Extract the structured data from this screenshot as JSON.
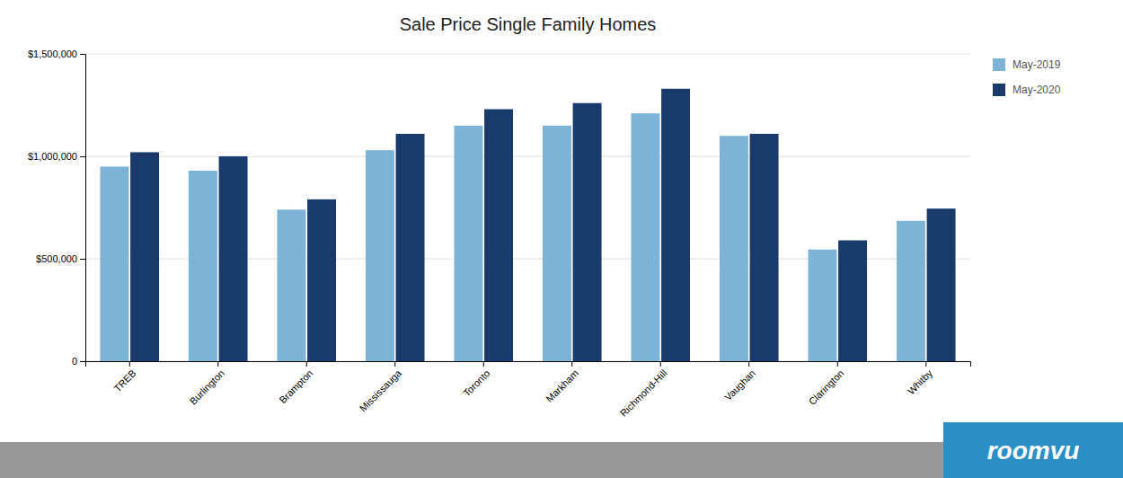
{
  "chart_data": {
    "type": "bar",
    "title": "Sale Price Single Family Homes",
    "categories": [
      "TREB",
      "Burlington",
      "Brampton",
      "Mississauga",
      "Toronto",
      "Markham",
      "Richmond-Hill",
      "Vaughan",
      "Clarington",
      "Whitby"
    ],
    "series": [
      {
        "name": "May-2019",
        "color": "#7EB3D8",
        "values": [
          950000,
          930000,
          740000,
          1030000,
          1150000,
          1150000,
          1210000,
          1100000,
          545000,
          685000
        ]
      },
      {
        "name": "May-2020",
        "color": "#1A3A6B",
        "values": [
          1020000,
          1000000,
          790000,
          1110000,
          1230000,
          1260000,
          1330000,
          1110000,
          590000,
          745000
        ]
      }
    ],
    "ylim": [
      0,
      1500000
    ],
    "yticks": [
      0,
      {
        "value": 500000,
        "label": "$500,000"
      },
      {
        "value": 1000000,
        "label": "$1,000,000"
      },
      {
        "value": 1500000,
        "label": "$1,500,000"
      }
    ],
    "grid": true,
    "legend": "right",
    "annotations": [
      "roomvu"
    ]
  }
}
